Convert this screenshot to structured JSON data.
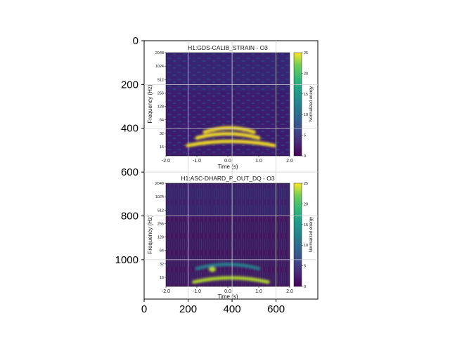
{
  "chart_data": {
    "type": "heatmap",
    "outer_axes": {
      "x_ticks": [
        "0",
        "200",
        "400",
        "600"
      ],
      "y_ticks": [
        "0",
        "200",
        "400",
        "600",
        "800",
        "1000"
      ],
      "grid": true
    },
    "panels": [
      {
        "title": "H1:GDS-CALIB_STRAIN - O3",
        "xlabel": "Time (s)",
        "ylabel": "Frequency (Hz)",
        "x_ticks": [
          "-2.0",
          "-1.0",
          "0.0",
          "1.0",
          "2.0"
        ],
        "y_ticks": [
          "2048",
          "1024",
          "512",
          "256",
          "128",
          "64",
          "32",
          "16"
        ],
        "xlim": [
          -2.0,
          2.0
        ],
        "ylim_hz": [
          10,
          2048
        ],
        "y_scale": "log2",
        "colorbar": {
          "label": "Normalized energy",
          "ticks": [
            "0",
            "5",
            "10",
            "15",
            "20",
            "25"
          ],
          "range": [
            0,
            25
          ],
          "colormap": "viridis"
        },
        "features": [
          {
            "desc": "bright arch",
            "time_center_s": 0.0,
            "time_halfwidth_s": 1.0,
            "freq_hz": 28,
            "peak_energy": 25
          },
          {
            "desc": "bright arch",
            "time_center_s": 0.1,
            "time_halfwidth_s": 1.4,
            "freq_hz": 19,
            "peak_energy": 25
          },
          {
            "desc": "upper arch",
            "time_center_s": 0.05,
            "time_halfwidth_s": 0.8,
            "freq_hz": 38,
            "peak_energy": 24
          }
        ]
      },
      {
        "title": "H1:ASC-DHARD_P_OUT_DQ - O3",
        "xlabel": "Time (s)",
        "ylabel": "Frequency (Hz)",
        "x_ticks": [
          "-2.0",
          "-1.0",
          "0.0",
          "1.0",
          "2.0"
        ],
        "y_ticks": [
          "2048",
          "1024",
          "512",
          "256",
          "128",
          "64",
          "32",
          "16"
        ],
        "xlim": [
          -2.0,
          2.0
        ],
        "ylim_hz": [
          10,
          2048
        ],
        "y_scale": "log2",
        "colorbar": {
          "label": "Normalized energy",
          "ticks": [
            "0",
            "5",
            "10",
            "15",
            "20",
            "25"
          ],
          "range": [
            0,
            25
          ],
          "colormap": "viridis"
        },
        "features": [
          {
            "desc": "faint arch",
            "time_center_s": 0.0,
            "time_halfwidth_s": 1.0,
            "freq_hz": 28,
            "peak_energy": 10
          },
          {
            "desc": "bright arc",
            "time_center_s": 0.1,
            "time_halfwidth_s": 1.2,
            "freq_hz": 14,
            "peak_energy": 22
          },
          {
            "desc": "bright spot",
            "time_center_s": -0.5,
            "freq_hz": 24,
            "peak_energy": 20
          }
        ]
      }
    ]
  },
  "colors": {
    "viridis_low": "#440154",
    "viridis_mid": "#21918c",
    "viridis_high": "#fde725"
  }
}
